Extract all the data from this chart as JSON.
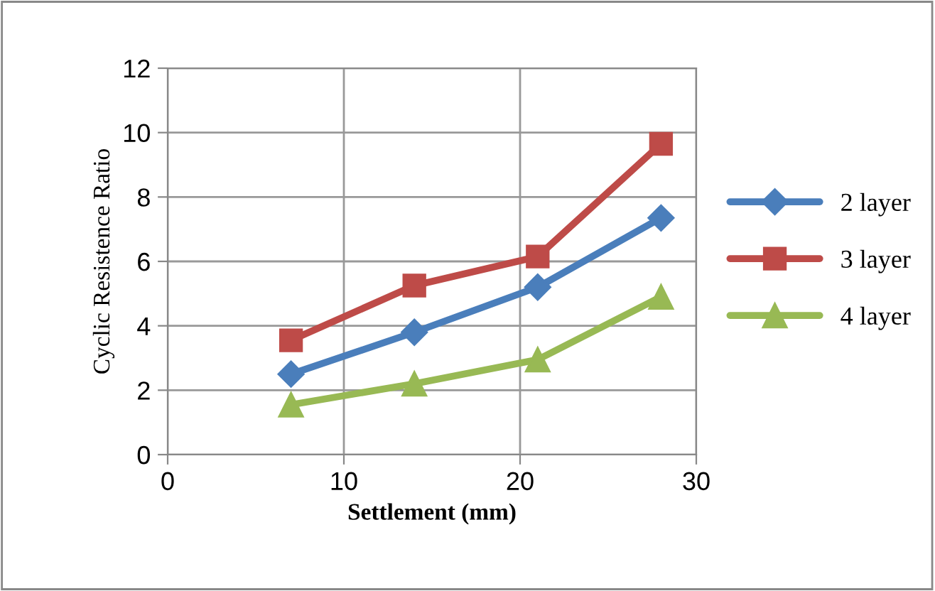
{
  "chart_data": {
    "type": "line",
    "xlabel": "Settlement (mm)",
    "ylabel": "Cyclic Resistence Ratio",
    "x": [
      7,
      14,
      21,
      28
    ],
    "series": [
      {
        "name": "2 layer",
        "color": "#4a7ebb",
        "marker": "diamond",
        "values": [
          2.5,
          3.8,
          5.2,
          7.35
        ]
      },
      {
        "name": "3 layer",
        "color": "#be4b48",
        "marker": "square",
        "values": [
          3.55,
          5.25,
          6.15,
          9.65
        ]
      },
      {
        "name": "4 layer",
        "color": "#98b954",
        "marker": "triangle",
        "values": [
          1.55,
          2.2,
          2.95,
          4.9
        ]
      }
    ],
    "xlim": [
      0,
      30
    ],
    "xticks": [
      0,
      10,
      20,
      30
    ],
    "ylim": [
      0,
      12
    ],
    "yticks": [
      0,
      2,
      4,
      6,
      8,
      10,
      12
    ],
    "grid": true,
    "legend": "right"
  }
}
